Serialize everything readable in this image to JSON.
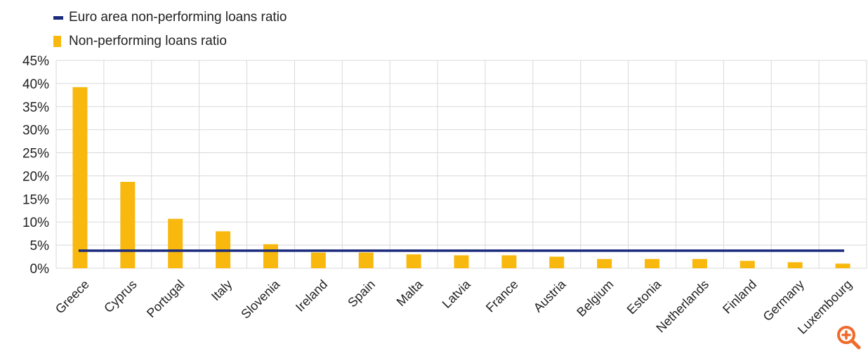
{
  "legend": {
    "line_label": "Euro area non-performing loans ratio",
    "bar_label": "Non-performing loans ratio"
  },
  "colors": {
    "bar": "#F8B80E",
    "line": "#1A2A7D",
    "grid": "#D9D9D9",
    "zoom": "#F06A2B"
  },
  "zoom_icon": "zoom-in-icon",
  "chart_data": {
    "type": "bar",
    "categories": [
      "Greece",
      "Cyprus",
      "Portugal",
      "Italy",
      "Slovenia",
      "Ireland",
      "Spain",
      "Malta",
      "Latvia",
      "France",
      "Austria",
      "Belgium",
      "Estonia",
      "Netherlands",
      "Finland",
      "Germany",
      "Luxembourg"
    ],
    "series": [
      {
        "name": "Non-performing loans ratio",
        "type": "bar",
        "values": [
          39.2,
          18.7,
          10.7,
          8.0,
          5.2,
          3.4,
          3.4,
          3.0,
          2.8,
          2.8,
          2.5,
          2.0,
          2.0,
          2.0,
          1.6,
          1.3,
          1.0
        ]
      },
      {
        "name": "Euro area non-performing loans ratio",
        "type": "line",
        "value": 3.8
      }
    ],
    "yticks": [
      "0%",
      "5%",
      "10%",
      "15%",
      "20%",
      "25%",
      "30%",
      "35%",
      "40%",
      "45%"
    ],
    "ylim": [
      0,
      45
    ],
    "grid": true,
    "legend_position": "top-left"
  }
}
